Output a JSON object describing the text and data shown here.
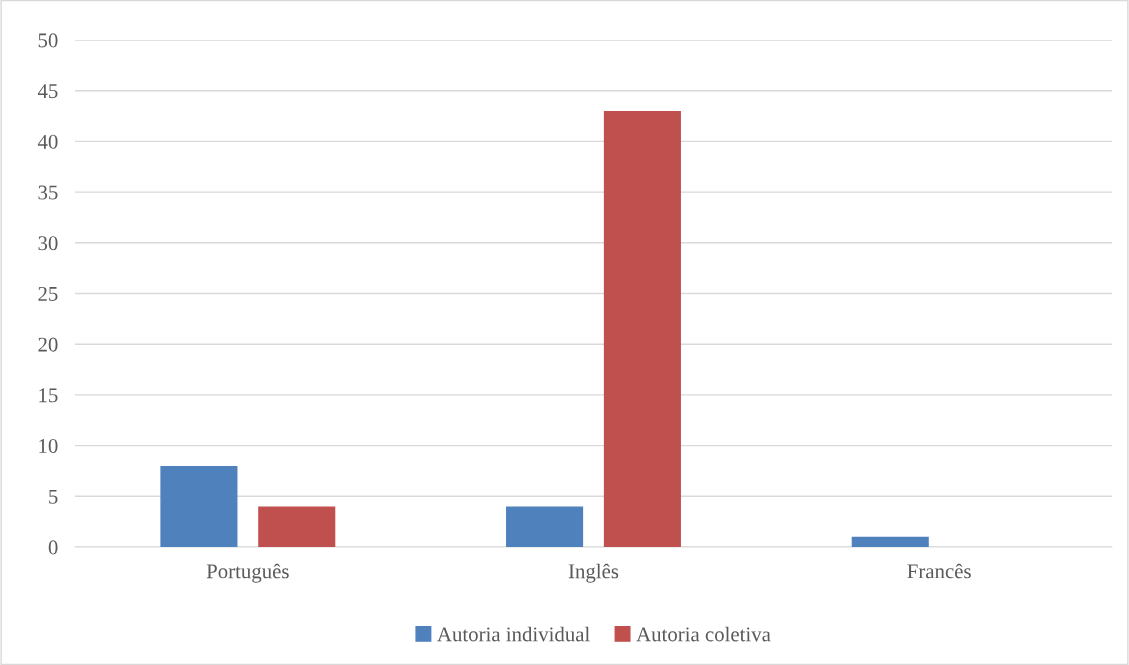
{
  "chart_data": {
    "type": "bar",
    "categories": [
      "Português",
      "Inglês",
      "Francês"
    ],
    "series": [
      {
        "name": "Autoria individual",
        "color": "#4f81bd",
        "values": [
          8,
          4,
          1
        ]
      },
      {
        "name": "Autoria coletiva",
        "color": "#c0504d",
        "values": [
          4,
          43,
          0
        ]
      }
    ],
    "ylim": [
      0,
      50
    ],
    "yticks": [
      0,
      5,
      10,
      15,
      20,
      25,
      30,
      35,
      40,
      45,
      50
    ],
    "grid": "y",
    "legend": "bottom"
  }
}
